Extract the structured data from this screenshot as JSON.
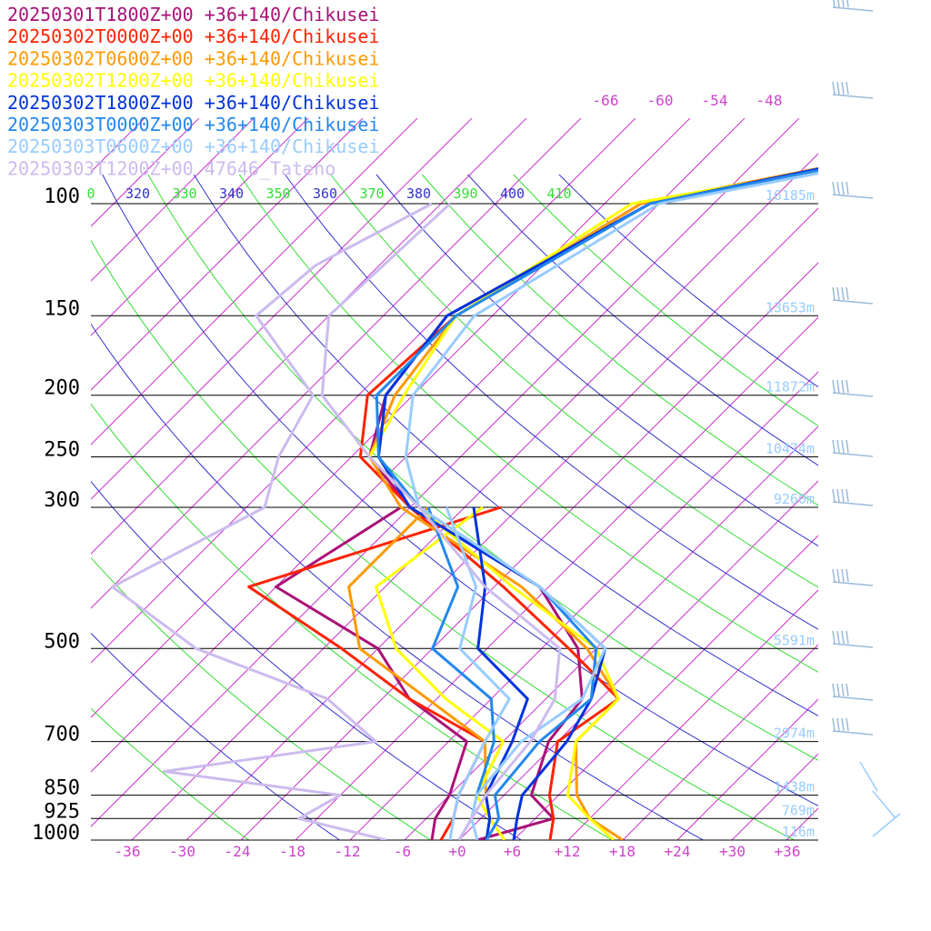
{
  "chart_data": {
    "type": "line",
    "pressure_levels": [
      {
        "p": 100,
        "label": "100",
        "height": "16185m"
      },
      {
        "p": 150,
        "label": "150",
        "height": "13653m"
      },
      {
        "p": 200,
        "label": "200",
        "height": "11872m"
      },
      {
        "p": 250,
        "label": "250",
        "height": "10474m"
      },
      {
        "p": 300,
        "label": "300",
        "height": "9260m"
      },
      {
        "p": 500,
        "label": "500",
        "height": "5591m"
      },
      {
        "p": 700,
        "label": "700",
        "height": "2974m"
      },
      {
        "p": 850,
        "label": "850",
        "height": "1438m"
      },
      {
        "p": 925,
        "label": "925",
        "height": "769m"
      },
      {
        "p": 1000,
        "label": "1000",
        "height": "116m"
      }
    ],
    "temperature_ticks": [
      "-36",
      "-30",
      "-24",
      "-18",
      "-12",
      "-6",
      "+0",
      "+6",
      "+12",
      "+18",
      "+24",
      "+30",
      "+36"
    ],
    "upper_isotherm_labels": [
      "-66",
      "-60",
      "-54",
      "-48"
    ],
    "theta_labels": [
      {
        "text": "0",
        "color": "#33dd33"
      },
      {
        "text": "320",
        "color": "#3333cc"
      },
      {
        "text": "330",
        "color": "#33dd33"
      },
      {
        "text": "340",
        "color": "#3333cc"
      },
      {
        "text": "350",
        "color": "#33dd33"
      },
      {
        "text": "360",
        "color": "#3333cc"
      },
      {
        "text": "370",
        "color": "#33dd33"
      },
      {
        "text": "380",
        "color": "#3333cc"
      },
      {
        "text": "390",
        "color": "#33dd33"
      },
      {
        "text": "400",
        "color": "#3333cc"
      },
      {
        "text": "410",
        "color": "#33dd33"
      }
    ],
    "series": [
      {
        "name": "20250301T1800Z+00 +36+140/Chikusei",
        "color": "#aa1177",
        "temp": [
          [
            85,
            -30
          ],
          [
            100,
            -49
          ],
          [
            150,
            -59
          ],
          [
            200,
            -57
          ],
          [
            250,
            -52
          ],
          [
            300,
            -42
          ],
          [
            400,
            -19
          ],
          [
            500,
            -8
          ],
          [
            600,
            -2
          ],
          [
            700,
            -1
          ],
          [
            850,
            3
          ],
          [
            925,
            8
          ],
          [
            1000,
            2
          ]
        ],
        "dew": [
          [
            300,
            -43
          ],
          [
            400,
            -48
          ],
          [
            500,
            -30
          ],
          [
            600,
            -21
          ],
          [
            700,
            -10
          ],
          [
            850,
            -6
          ],
          [
            925,
            -5
          ],
          [
            1000,
            -3
          ]
        ]
      },
      {
        "name": "20250302T0000Z+00 +36+140/Chikusei",
        "color": "#ff2200",
        "temp": [
          [
            85,
            -30
          ],
          [
            100,
            -50
          ],
          [
            150,
            -58
          ],
          [
            200,
            -59
          ],
          [
            250,
            -53
          ],
          [
            300,
            -42
          ],
          [
            400,
            -23
          ],
          [
            500,
            -9
          ],
          [
            600,
            2
          ],
          [
            700,
            0
          ],
          [
            850,
            5
          ],
          [
            925,
            8
          ],
          [
            1000,
            10
          ]
        ],
        "dew": [
          [
            300,
            -32
          ],
          [
            400,
            -51
          ],
          [
            500,
            -34
          ],
          [
            600,
            -21
          ],
          [
            700,
            -8
          ],
          [
            850,
            -5
          ],
          [
            925,
            -3
          ],
          [
            1000,
            -2
          ]
        ]
      },
      {
        "name": "20250302T0600Z+00 +36+140/Chikusei",
        "color": "#ff9900",
        "temp": [
          [
            85,
            -30
          ],
          [
            100,
            -50
          ],
          [
            150,
            -58
          ],
          [
            200,
            -56
          ],
          [
            250,
            -52
          ],
          [
            300,
            -43
          ],
          [
            400,
            -21
          ],
          [
            500,
            -7
          ],
          [
            600,
            2
          ],
          [
            700,
            2
          ],
          [
            850,
            8
          ],
          [
            925,
            12
          ],
          [
            1000,
            18
          ]
        ],
        "dew": [
          [
            300,
            -40
          ],
          [
            400,
            -40
          ],
          [
            500,
            -32
          ],
          [
            600,
            -19
          ],
          [
            700,
            -8
          ],
          [
            850,
            -2
          ],
          [
            925,
            1
          ],
          [
            1000,
            5
          ]
        ]
      },
      {
        "name": "20250302T1200Z+00 +36+140/Chikusei",
        "color": "#ffff00",
        "temp": [
          [
            85,
            -28
          ],
          [
            100,
            -51
          ],
          [
            150,
            -58
          ],
          [
            200,
            -55
          ],
          [
            250,
            -52
          ],
          [
            300,
            -41
          ],
          [
            400,
            -22
          ],
          [
            500,
            -6
          ],
          [
            600,
            2
          ],
          [
            700,
            2
          ],
          [
            850,
            7
          ],
          [
            925,
            12
          ],
          [
            1000,
            17
          ]
        ],
        "dew": [
          [
            300,
            -34
          ],
          [
            400,
            -37
          ],
          [
            500,
            -28
          ],
          [
            600,
            -17
          ],
          [
            700,
            -6
          ],
          [
            850,
            -3
          ],
          [
            925,
            1
          ],
          [
            1000,
            5
          ]
        ]
      },
      {
        "name": "20250302T1800Z+00 +36+140/Chikusei",
        "color": "#0033dd",
        "temp": [
          [
            85,
            -30
          ],
          [
            100,
            -49
          ],
          [
            150,
            -59
          ],
          [
            200,
            -57
          ],
          [
            250,
            -51
          ],
          [
            300,
            -42
          ],
          [
            400,
            -19
          ],
          [
            500,
            -5
          ],
          [
            600,
            -1
          ],
          [
            700,
            1
          ],
          [
            850,
            2
          ],
          [
            925,
            4
          ],
          [
            1000,
            6
          ]
        ],
        "dew": [
          [
            300,
            -35
          ],
          [
            400,
            -25
          ],
          [
            500,
            -19
          ],
          [
            600,
            -8
          ],
          [
            700,
            -5
          ],
          [
            850,
            -2
          ],
          [
            925,
            1
          ],
          [
            1000,
            3
          ]
        ]
      },
      {
        "name": "20250303T0000Z+00 +36+140/Chikusei",
        "color": "#2288ee",
        "temp": [
          [
            85,
            -29
          ],
          [
            100,
            -49
          ],
          [
            150,
            -58
          ],
          [
            200,
            -58
          ],
          [
            250,
            -51
          ],
          [
            300,
            -41
          ],
          [
            400,
            -19
          ],
          [
            500,
            -6
          ],
          [
            600,
            -1
          ],
          [
            700,
            -2
          ],
          [
            850,
            -1
          ],
          [
            925,
            2
          ],
          [
            1000,
            3
          ]
        ],
        "dew": [
          [
            300,
            -40
          ],
          [
            400,
            -28
          ],
          [
            500,
            -24
          ],
          [
            600,
            -12
          ],
          [
            700,
            -7
          ],
          [
            850,
            -3
          ],
          [
            925,
            -1
          ],
          [
            1000,
            0
          ]
        ]
      },
      {
        "name": "20250303T0600Z+00 +36+140/Chikusei",
        "color": "#99ccff",
        "temp": [
          [
            85,
            -27
          ],
          [
            100,
            -48
          ],
          [
            150,
            -56
          ],
          [
            200,
            -54
          ],
          [
            250,
            -48
          ],
          [
            300,
            -41
          ],
          [
            400,
            -19
          ],
          [
            500,
            -5
          ],
          [
            600,
            -2
          ],
          [
            700,
            -4
          ],
          [
            850,
            -3
          ],
          [
            925,
            -1
          ],
          [
            1000,
            2
          ]
        ],
        "dew": [
          [
            300,
            -38
          ],
          [
            400,
            -26
          ],
          [
            500,
            -21
          ],
          [
            600,
            -10
          ],
          [
            700,
            -8
          ],
          [
            850,
            -5
          ],
          [
            925,
            -3
          ],
          [
            1000,
            -1
          ]
        ]
      },
      {
        "name": "20250303T1200Z+00 47646_Tateno",
        "color": "#ccbbee",
        "temp": [
          [
            100,
            -71
          ],
          [
            150,
            -72
          ],
          [
            200,
            -64
          ],
          [
            250,
            -52
          ],
          [
            300,
            -41
          ],
          [
            400,
            -25
          ],
          [
            500,
            -10
          ],
          [
            600,
            -5
          ],
          [
            700,
            -3
          ],
          [
            850,
            -2
          ],
          [
            925,
            -1
          ],
          [
            1000,
            0
          ]
        ],
        "dew": [
          [
            100,
            -73
          ],
          [
            125,
            -79
          ],
          [
            150,
            -80
          ],
          [
            200,
            -65
          ],
          [
            250,
            -62
          ],
          [
            300,
            -58
          ],
          [
            400,
            -66
          ],
          [
            500,
            -50
          ],
          [
            600,
            -30
          ],
          [
            700,
            -20
          ],
          [
            780,
            -40
          ],
          [
            850,
            -18
          ],
          [
            925,
            -20
          ],
          [
            1000,
            -8
          ]
        ]
      }
    ],
    "xlim": [
      -40,
      40
    ],
    "ylim": [
      1000,
      100
    ],
    "legend": "top-left"
  }
}
